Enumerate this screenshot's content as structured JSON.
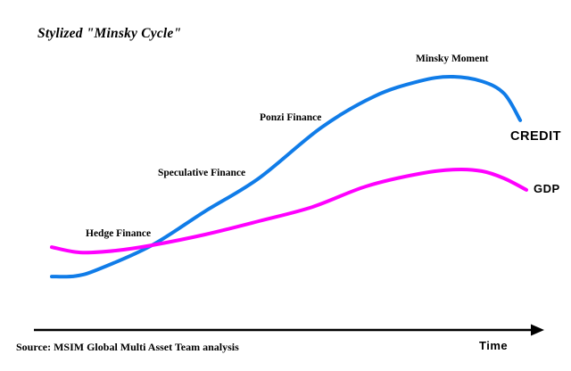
{
  "title": "Stylized \"Minsky Cycle\"",
  "source": "Source: MSIM Global Multi Asset Team analysis",
  "colors": {
    "credit_line": "#107CE8",
    "gdp_line": "#FF00FF",
    "axis": "#000000",
    "text": "#000000",
    "background": "#FFFFFF"
  },
  "chart_data": {
    "type": "line",
    "title": "Stylized \"Minsky Cycle\"",
    "xlabel": "Time",
    "ylabel": "",
    "grid": false,
    "legend_position": "inline-right-end-labels",
    "x_range": [
      0,
      100
    ],
    "y_range": [
      0,
      110
    ],
    "axis_note": "stylized sketch; no numeric tick labels on either axis",
    "annotations": [
      {
        "label": "Hedge Finance"
      },
      {
        "label": "Speculative Finance"
      },
      {
        "label": "Ponzi Finance"
      },
      {
        "label": "Minsky Moment"
      }
    ],
    "series": [
      {
        "name": "CREDIT",
        "color": "#107CE8",
        "points": [
          [
            0,
            23.3
          ],
          [
            5,
            23.5
          ],
          [
            9.8,
            26
          ],
          [
            21.1,
            35
          ],
          [
            32.3,
            47.7
          ],
          [
            43.6,
            60
          ],
          [
            56.8,
            79
          ],
          [
            68,
            90.7
          ],
          [
            77.4,
            96.3
          ],
          [
            84,
            98
          ],
          [
            90.6,
            96.3
          ],
          [
            95.3,
            91.7
          ],
          [
            98.7,
            81.7
          ]
        ]
      },
      {
        "name": "GDP",
        "color": "#FF00FF",
        "points": [
          [
            0,
            34.3
          ],
          [
            6,
            32.3
          ],
          [
            13.5,
            33
          ],
          [
            21.1,
            35
          ],
          [
            32.3,
            39
          ],
          [
            43.6,
            44
          ],
          [
            54.9,
            49.3
          ],
          [
            66.2,
            57
          ],
          [
            77.4,
            61.7
          ],
          [
            85,
            63.3
          ],
          [
            90.6,
            62.7
          ],
          [
            95.3,
            60
          ],
          [
            100,
            55.7
          ]
        ]
      }
    ]
  }
}
